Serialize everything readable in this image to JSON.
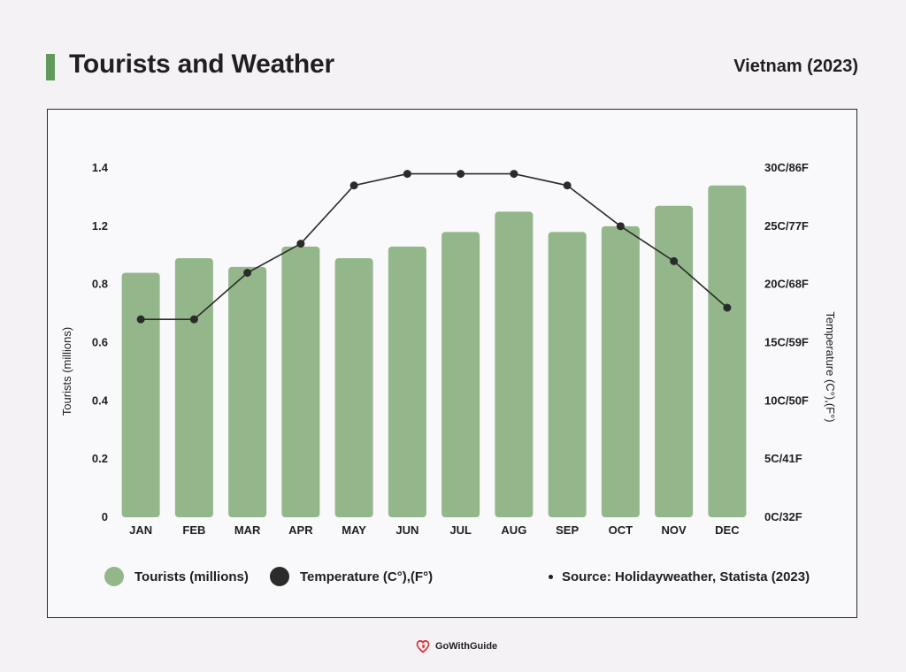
{
  "header": {
    "title": "Tourists and Weather",
    "subtitle": "Vietnam (2023)"
  },
  "colors": {
    "bar": "#93b78a",
    "line": "#2b2b2b",
    "accent": "#5f9a5c"
  },
  "chart_data": {
    "type": "bar",
    "categories": [
      "JAN",
      "FEB",
      "MAR",
      "APR",
      "MAY",
      "JUN",
      "JUL",
      "AUG",
      "SEP",
      "OCT",
      "NOV",
      "DEC"
    ],
    "series": [
      {
        "name": "Tourists (millions)",
        "type": "bar",
        "axis": "left",
        "values": [
          0.84,
          0.89,
          0.86,
          0.93,
          0.89,
          0.93,
          0.98,
          1.05,
          0.98,
          1.0,
          1.07,
          1.14
        ]
      },
      {
        "name": "Temperature (C°),(F°)",
        "type": "line",
        "axis": "right",
        "values": [
          17,
          17,
          21,
          23.5,
          28.5,
          29.5,
          29.5,
          29.5,
          28.5,
          25,
          22,
          18
        ]
      }
    ],
    "ylabel": "Tourists (millions)",
    "y2label": "Temperature (C°),(F°)",
    "y_ticks": [
      "0",
      "0.2",
      "0.4",
      "0.6",
      "0.8",
      "1.2",
      "1.4"
    ],
    "y2_ticks": [
      "0C/32F",
      "5C/41F",
      "10C/50F",
      "15C/59F",
      "20C/68F",
      "25C/77F",
      "30C/86F"
    ],
    "ylim": [
      0,
      1.2
    ],
    "y2lim": [
      0,
      30
    ],
    "grid": false,
    "legend_position": "bottom"
  },
  "legend": {
    "tourists": "Tourists (millions)",
    "temperature": "Temperature (C°),(F°)",
    "source": "Source: Holidayweather, Statista (2023)"
  },
  "brand": {
    "name": "GoWithGuide"
  }
}
